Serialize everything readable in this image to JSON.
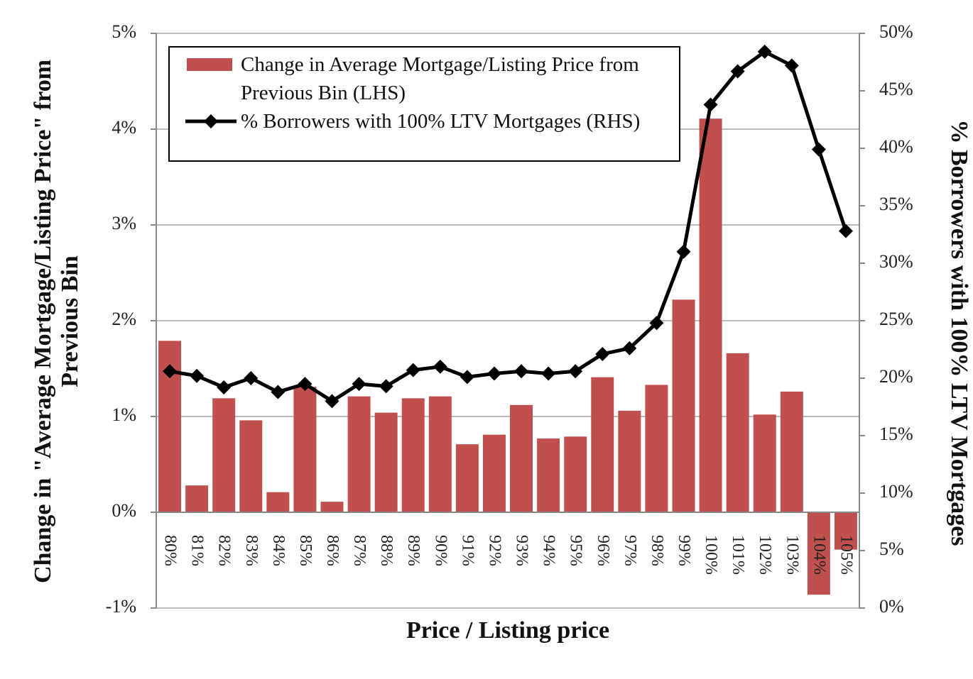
{
  "chart_data": {
    "type": "bar",
    "x_label": "Price / Listing price",
    "y_label": "Change in \"Average Mortgage/Listing Price\" from Previous Bin",
    "y2_label": "% Borrowers with 100% LTV Mortgages",
    "categories": [
      "80%",
      "81%",
      "82%",
      "83%",
      "84%",
      "85%",
      "86%",
      "87%",
      "88%",
      "89%",
      "90%",
      "91%",
      "92%",
      "93%",
      "94%",
      "95%",
      "96%",
      "97%",
      "98%",
      "99%",
      "100%",
      "101%",
      "102%",
      "103%",
      "104%",
      "105%"
    ],
    "series": [
      {
        "name": "Change in Average Mortgage/Listing Price from Previous Bin (LHS)",
        "type": "bar",
        "color": "#c0504d",
        "values": [
          1.79,
          0.28,
          1.19,
          0.96,
          0.21,
          1.31,
          0.11,
          1.21,
          1.04,
          1.19,
          1.21,
          0.71,
          0.81,
          1.12,
          0.77,
          0.79,
          1.41,
          1.06,
          1.33,
          2.22,
          4.11,
          1.66,
          1.02,
          1.26,
          -0.86,
          -0.39
        ]
      },
      {
        "name": "% Borrowers with 100% LTV Mortgages (RHS)",
        "type": "line",
        "axis": "y2",
        "color": "#000000",
        "values": [
          20.6,
          20.2,
          19.2,
          20.0,
          18.8,
          19.5,
          18.0,
          19.5,
          19.3,
          20.7,
          21.0,
          20.1,
          20.4,
          20.6,
          20.4,
          20.6,
          22.1,
          22.6,
          24.8,
          31.0,
          43.8,
          46.7,
          48.4,
          47.2,
          39.9,
          32.8
        ]
      }
    ],
    "ylim": [
      -1,
      5
    ],
    "yticks": [
      {
        "value": -1,
        "label": "-1%"
      },
      {
        "value": 0,
        "label": "0%"
      },
      {
        "value": 1,
        "label": "1%"
      },
      {
        "value": 2,
        "label": "2%"
      },
      {
        "value": 3,
        "label": "3%"
      },
      {
        "value": 4,
        "label": "4%"
      },
      {
        "value": 5,
        "label": "5%"
      }
    ],
    "y2lim": [
      0,
      50
    ],
    "y2ticks": [
      {
        "value": 0,
        "label": "0%"
      },
      {
        "value": 5,
        "label": "5%"
      },
      {
        "value": 10,
        "label": "10%"
      },
      {
        "value": 15,
        "label": "15%"
      },
      {
        "value": 20,
        "label": "20%"
      },
      {
        "value": 25,
        "label": "25%"
      },
      {
        "value": 30,
        "label": "30%"
      },
      {
        "value": 35,
        "label": "35%"
      },
      {
        "value": 40,
        "label": "40%"
      },
      {
        "value": 45,
        "label": "45%"
      },
      {
        "value": 50,
        "label": "50%"
      }
    ],
    "grid": true,
    "legend": "upper left"
  }
}
